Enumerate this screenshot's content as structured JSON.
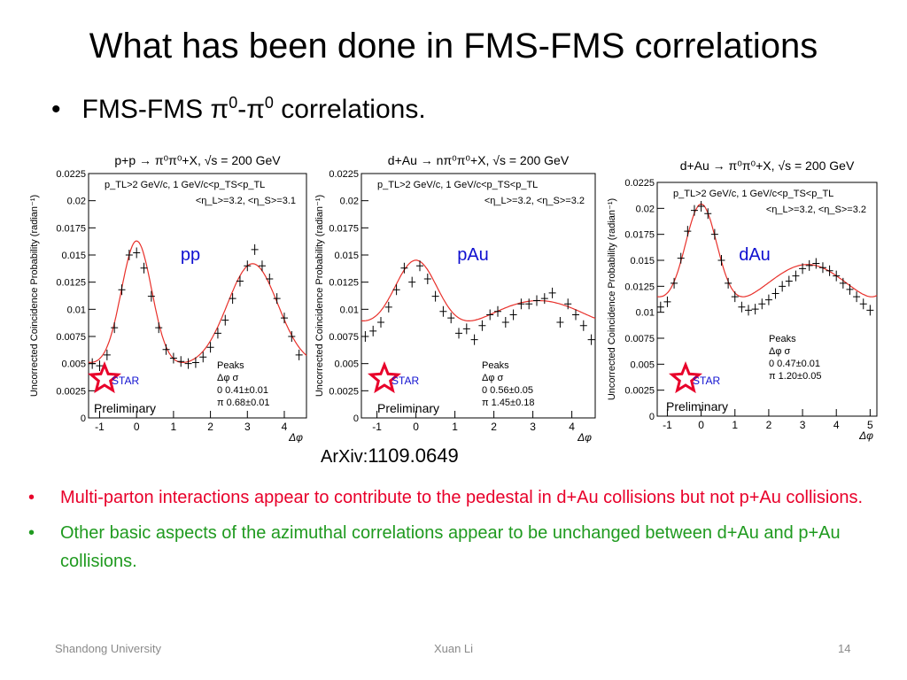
{
  "slide": {
    "title": "What has been done in FMS-FMS correlations",
    "subtitle_prefix": "FMS-FMS π",
    "subtitle_sup1": "0",
    "subtitle_mid": "-π",
    "subtitle_sup2": "0",
    "subtitle_suffix": " correlations.",
    "bullet_char": "•",
    "arxiv_prefix": "ArXiv:",
    "arxiv_num": "1109.0649",
    "bullets": [
      {
        "text": "Multi-parton interactions appear to contribute to the pedestal in d+Au collisions but not p+Au collisions.",
        "color": "#e8002a"
      },
      {
        "text": "Other basic aspects of the azimuthal correlations appear to be unchanged between d+Au and p+Au collisions.",
        "color": "#1f9a1f"
      }
    ],
    "footer_left": "Shandong University",
    "footer_center": "Xuan Li",
    "footer_right": "14"
  },
  "chart_data": [
    {
      "type": "scatter",
      "header": "p+p → π⁰π⁰+X, √s = 200 GeV",
      "cuts": "p_TL>2 GeV/c, 1 GeV/c<p_TS<p_TL",
      "eta": "<η_L>=3.2, <η_S>=3.1",
      "label": "pp",
      "ylabel": "Uncorrected Coincidence Probability (radian⁻¹)",
      "xlabel": "Δφ",
      "xlim": [
        -1.3,
        4.6
      ],
      "ylim": [
        0,
        0.0225
      ],
      "xticks": [
        "-1",
        "0",
        "1",
        "2",
        "3",
        "4"
      ],
      "yticks": [
        "0",
        "0.0025",
        "0.005",
        "0.0075",
        "0.01",
        "0.0125",
        "0.015",
        "0.0175",
        "0.02",
        "0.0225"
      ],
      "peaks_title": "Peaks",
      "peaks_header": "Δφ    σ",
      "peaks": [
        "0    0.41±0.01",
        "π    0.68±0.01"
      ],
      "logo_text": "STAR",
      "preliminary": "Preliminary",
      "x": [
        -1.2,
        -1.0,
        -0.8,
        -0.6,
        -0.4,
        -0.2,
        0.0,
        0.2,
        0.4,
        0.6,
        0.8,
        1.0,
        1.2,
        1.4,
        1.6,
        1.8,
        2.0,
        2.2,
        2.4,
        2.6,
        2.8,
        3.0,
        3.2,
        3.4,
        3.6,
        3.8,
        4.0,
        4.2,
        4.4
      ],
      "y": [
        0.005,
        0.0048,
        0.0058,
        0.0083,
        0.0118,
        0.015,
        0.0152,
        0.0138,
        0.0112,
        0.0083,
        0.0063,
        0.0055,
        0.0052,
        0.005,
        0.0051,
        0.0056,
        0.0065,
        0.0078,
        0.009,
        0.011,
        0.0126,
        0.014,
        0.0155,
        0.014,
        0.0128,
        0.011,
        0.0092,
        0.0075,
        0.0058
      ],
      "fit": {
        "ped": 0.0048,
        "a1": 0.0115,
        "s1": 0.41,
        "a2": 0.0094,
        "s2": 0.68
      }
    },
    {
      "type": "scatter",
      "header": "d+Au → nπ⁰π⁰+X, √s = 200 GeV",
      "cuts": "p_TL>2 GeV/c, 1 GeV/c<p_TS<p_TL",
      "eta": "<η_L>=3.2, <η_S>=3.2",
      "label": "pAu",
      "ylabel": "Uncorrected Coincidence Probability (radian⁻¹)",
      "xlabel": "Δφ",
      "xlim": [
        -1.4,
        4.6
      ],
      "ylim": [
        0,
        0.0225
      ],
      "xticks": [
        "-1",
        "0",
        "1",
        "2",
        "3",
        "4"
      ],
      "yticks": [
        "0",
        "0.0025",
        "0.005",
        "0.0075",
        "0.01",
        "0.0125",
        "0.015",
        "0.0175",
        "0.02",
        "0.0225"
      ],
      "peaks_title": "Peaks",
      "peaks_header": "Δφ    σ",
      "peaks": [
        "0    0.56±0.05",
        "π    1.45±0.18"
      ],
      "logo_text": "STAR",
      "preliminary": "Preliminary",
      "x": [
        -1.3,
        -1.1,
        -0.9,
        -0.7,
        -0.5,
        -0.3,
        -0.1,
        0.1,
        0.3,
        0.5,
        0.7,
        0.9,
        1.1,
        1.3,
        1.5,
        1.7,
        1.9,
        2.1,
        2.3,
        2.5,
        2.7,
        2.9,
        3.1,
        3.3,
        3.5,
        3.7,
        3.9,
        4.1,
        4.3,
        4.5
      ],
      "y": [
        0.0075,
        0.008,
        0.0088,
        0.0102,
        0.0118,
        0.0138,
        0.0125,
        0.014,
        0.0128,
        0.0112,
        0.0098,
        0.0092,
        0.0078,
        0.0082,
        0.0072,
        0.0085,
        0.0095,
        0.0098,
        0.0088,
        0.0095,
        0.0105,
        0.0105,
        0.0108,
        0.011,
        0.0115,
        0.0088,
        0.0105,
        0.0095,
        0.0085,
        0.0072
      ],
      "fit": {
        "ped": 0.0065,
        "a1": 0.0072,
        "s1": 0.56,
        "a2": 0.0043,
        "s2": 1.45
      }
    },
    {
      "type": "scatter",
      "header": "d+Au → π⁰π⁰+X, √s = 200 GeV",
      "cuts": "p_TL>2 GeV/c, 1 GeV/c<p_TS<p_TL",
      "eta": "<η_L>=3.2, <η_S>=3.2",
      "label": "dAu",
      "ylabel": "Uncorrected Coincidence Probability (radian⁻¹)",
      "xlabel": "Δφ",
      "xlim": [
        -1.3,
        5.2
      ],
      "ylim": [
        0,
        0.0225
      ],
      "xticks": [
        "-1",
        "0",
        "1",
        "2",
        "3",
        "4",
        "5"
      ],
      "yticks": [
        "0",
        "0.0025",
        "0.005",
        "0.0075",
        "0.01",
        "0.0125",
        "0.015",
        "0.0175",
        "0.02",
        "0.0225"
      ],
      "peaks_title": "Peaks",
      "peaks_header": "Δφ    σ",
      "peaks": [
        "0    0.47±0.01",
        "π    1.20±0.05"
      ],
      "logo_text": "STAR",
      "preliminary": "Preliminary",
      "x": [
        -1.2,
        -1.0,
        -0.8,
        -0.6,
        -0.4,
        -0.2,
        0.0,
        0.2,
        0.4,
        0.6,
        0.8,
        1.0,
        1.2,
        1.4,
        1.6,
        1.8,
        2.0,
        2.2,
        2.4,
        2.6,
        2.8,
        3.0,
        3.2,
        3.4,
        3.6,
        3.8,
        4.0,
        4.2,
        4.4,
        4.6,
        4.8,
        5.0
      ],
      "y": [
        0.0105,
        0.011,
        0.0128,
        0.0152,
        0.0178,
        0.0198,
        0.0202,
        0.0195,
        0.0175,
        0.015,
        0.0128,
        0.0115,
        0.0105,
        0.0102,
        0.0103,
        0.0108,
        0.0112,
        0.0118,
        0.0125,
        0.013,
        0.0135,
        0.0142,
        0.0145,
        0.0147,
        0.0143,
        0.014,
        0.0135,
        0.0128,
        0.0122,
        0.0115,
        0.0108,
        0.0102
      ],
      "fit": {
        "ped": 0.0098,
        "a1": 0.0103,
        "s1": 0.47,
        "a2": 0.0048,
        "s2": 1.2
      }
    }
  ]
}
